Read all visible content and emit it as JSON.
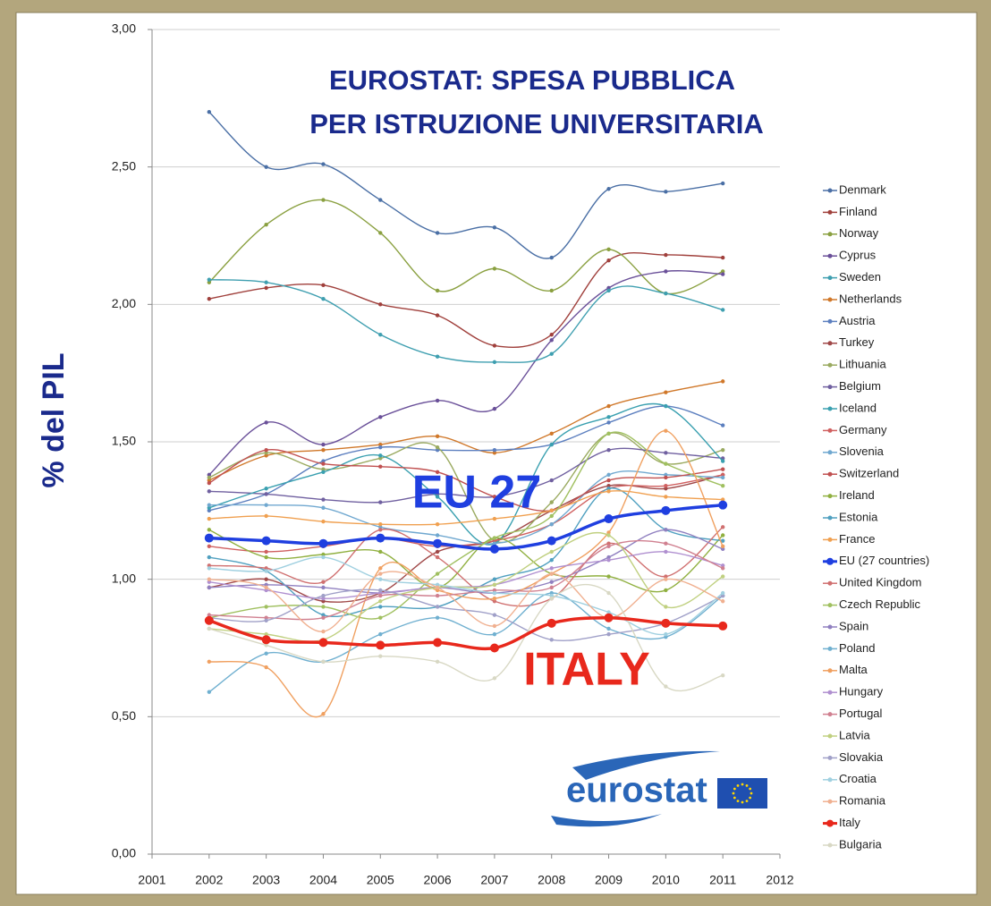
{
  "chart_data": {
    "type": "line",
    "title": [
      "EUROSTAT: SPESA PUBBLICA",
      "PER ISTRUZIONE UNIVERSITARIA"
    ],
    "y_label": "% del PIL",
    "annotations": [
      "EU 27",
      "ITALY"
    ],
    "logo_text": "eurostat",
    "x": [
      2002,
      2003,
      2004,
      2005,
      2006,
      2007,
      2008,
      2009,
      2010,
      2011
    ],
    "xlim": [
      2001,
      2012
    ],
    "xticks": [
      2001,
      2002,
      2003,
      2004,
      2005,
      2006,
      2007,
      2008,
      2009,
      2010,
      2011,
      2012
    ],
    "ylim": [
      0,
      3
    ],
    "yticks": [
      {
        "value": 0,
        "label": "0,00"
      },
      {
        "value": 0.5,
        "label": "0,50"
      },
      {
        "value": 1,
        "label": "1,00"
      },
      {
        "value": 1.5,
        "label": "1,50"
      },
      {
        "value": 2,
        "label": "2,00"
      },
      {
        "value": 2.5,
        "label": "2,50"
      },
      {
        "value": 3,
        "label": "3,00"
      }
    ],
    "grid": true,
    "legend": "right",
    "series": [
      {
        "name": "Denmark",
        "color": "#4a6fa5",
        "values": [
          2.7,
          2.5,
          2.51,
          2.38,
          2.26,
          2.28,
          2.17,
          2.42,
          2.41,
          2.44
        ]
      },
      {
        "name": "Finland",
        "color": "#a0403c",
        "values": [
          2.02,
          2.06,
          2.07,
          2.0,
          1.96,
          1.85,
          1.89,
          2.16,
          2.18,
          2.17
        ]
      },
      {
        "name": "Norway",
        "color": "#8aa040",
        "values": [
          2.08,
          2.29,
          2.38,
          2.26,
          2.05,
          2.13,
          2.05,
          2.2,
          2.04,
          2.12
        ]
      },
      {
        "name": "Cyprus",
        "color": "#6a5099",
        "values": [
          1.38,
          1.57,
          1.49,
          1.59,
          1.65,
          1.62,
          1.87,
          2.06,
          2.12,
          2.11
        ]
      },
      {
        "name": "Sweden",
        "color": "#3f9fb0",
        "values": [
          2.09,
          2.08,
          2.02,
          1.89,
          1.81,
          1.79,
          1.82,
          2.05,
          2.04,
          1.98
        ]
      },
      {
        "name": "Netherlands",
        "color": "#d0782a",
        "values": [
          1.36,
          1.45,
          1.47,
          1.49,
          1.52,
          1.46,
          1.53,
          1.63,
          1.68,
          1.72
        ]
      },
      {
        "name": "Austria",
        "color": "#5c7fbf",
        "values": [
          1.25,
          1.31,
          1.43,
          1.48,
          1.47,
          1.47,
          1.49,
          1.57,
          1.63,
          1.56
        ]
      },
      {
        "name": "Turkey",
        "color": "#a04848",
        "values": [
          0.97,
          1.0,
          0.92,
          0.95,
          1.1,
          1.14,
          1.25,
          1.34,
          1.33,
          1.38
        ]
      },
      {
        "name": "Lithuania",
        "color": "#9aaa60",
        "values": [
          1.37,
          1.46,
          1.4,
          1.44,
          1.48,
          1.14,
          1.28,
          1.53,
          1.42,
          1.47
        ]
      },
      {
        "name": "Belgium",
        "color": "#7060a0",
        "values": [
          1.32,
          1.31,
          1.29,
          1.28,
          1.31,
          1.3,
          1.36,
          1.47,
          1.46,
          1.44
        ]
      },
      {
        "name": "Iceland",
        "color": "#3aa0b0",
        "values": [
          1.26,
          1.33,
          1.39,
          1.45,
          1.3,
          1.13,
          1.49,
          1.59,
          1.63,
          1.43
        ]
      },
      {
        "name": "Germany",
        "color": "#d06060",
        "values": [
          1.12,
          1.1,
          1.12,
          1.15,
          1.12,
          1.14,
          1.2,
          1.33,
          1.34,
          1.38
        ]
      },
      {
        "name": "Slovenia",
        "color": "#70a8d0",
        "values": [
          1.27,
          1.27,
          1.26,
          1.19,
          1.16,
          1.13,
          1.2,
          1.38,
          1.38,
          1.37
        ]
      },
      {
        "name": "Switzerland",
        "color": "#c05050",
        "values": [
          1.35,
          1.47,
          1.42,
          1.41,
          1.39,
          1.3,
          1.25,
          1.36,
          1.37,
          1.4
        ]
      },
      {
        "name": "Ireland",
        "color": "#90b040",
        "values": [
          1.18,
          1.08,
          1.09,
          1.1,
          0.97,
          1.15,
          1.02,
          1.01,
          0.96,
          1.16
        ]
      },
      {
        "name": "Estonia",
        "color": "#50a0c0",
        "values": [
          1.08,
          1.03,
          0.87,
          0.9,
          0.9,
          1.0,
          1.07,
          1.33,
          1.18,
          1.14
        ]
      },
      {
        "name": "France",
        "color": "#f0a050",
        "values": [
          1.22,
          1.23,
          1.21,
          1.2,
          1.2,
          1.22,
          1.25,
          1.32,
          1.3,
          1.29
        ]
      },
      {
        "name": "EU (27 countries)",
        "color": "#1f3fe0",
        "values": [
          1.15,
          1.14,
          1.13,
          1.15,
          1.13,
          1.11,
          1.14,
          1.22,
          1.25,
          1.27
        ]
      },
      {
        "name": "United Kingdom",
        "color": "#d07070",
        "values": [
          1.05,
          1.04,
          0.99,
          1.18,
          1.08,
          0.92,
          0.93,
          1.13,
          1.01,
          1.19
        ]
      },
      {
        "name": "Czech Republic",
        "color": "#a0c060",
        "values": [
          0.86,
          0.9,
          0.9,
          0.86,
          1.02,
          1.15,
          1.23,
          1.53,
          1.42,
          1.34
        ]
      },
      {
        "name": "Spain",
        "color": "#9080c0",
        "values": [
          0.97,
          0.98,
          0.97,
          0.95,
          0.97,
          0.95,
          0.99,
          1.08,
          1.18,
          1.11
        ]
      },
      {
        "name": "Poland",
        "color": "#70b0d0",
        "values": [
          0.59,
          0.73,
          0.7,
          0.8,
          0.86,
          0.8,
          0.95,
          0.82,
          0.79,
          0.94
        ]
      },
      {
        "name": "Malta",
        "color": "#f0a060",
        "values": [
          0.7,
          0.68,
          0.51,
          1.04,
          0.96,
          0.93,
          1.02,
          1.17,
          1.54,
          1.12
        ]
      },
      {
        "name": "Hungary",
        "color": "#b090d0",
        "values": [
          0.99,
          0.96,
          0.93,
          0.95,
          0.97,
          0.98,
          1.04,
          1.07,
          1.1,
          1.05
        ]
      },
      {
        "name": "Portugal",
        "color": "#d08090",
        "values": [
          0.87,
          0.86,
          0.86,
          0.94,
          0.94,
          0.96,
          0.97,
          1.12,
          1.13,
          1.04
        ]
      },
      {
        "name": "Latvia",
        "color": "#c0d080",
        "values": [
          0.82,
          0.8,
          0.78,
          0.92,
          0.97,
          0.98,
          1.1,
          1.16,
          0.9,
          1.01
        ]
      },
      {
        "name": "Slovakia",
        "color": "#a0a0c8",
        "values": [
          0.86,
          0.85,
          0.94,
          0.96,
          0.9,
          0.87,
          0.78,
          0.8,
          0.84,
          0.94
        ]
      },
      {
        "name": "Croatia",
        "color": "#a0d0e0",
        "values": [
          1.04,
          1.03,
          1.08,
          1.0,
          0.98,
          0.95,
          0.94,
          0.88,
          0.8,
          0.95
        ]
      },
      {
        "name": "Romania",
        "color": "#f0b090",
        "values": [
          1.0,
          0.97,
          0.81,
          1.02,
          0.97,
          0.83,
          1.02,
          0.86,
          1.0,
          0.92
        ]
      },
      {
        "name": "Italy",
        "color": "#e8281c",
        "values": [
          0.85,
          0.78,
          0.77,
          0.76,
          0.77,
          0.75,
          0.84,
          0.86,
          0.84,
          0.83
        ]
      },
      {
        "name": "Bulgaria",
        "color": "#d8d8c4",
        "values": [
          0.82,
          0.76,
          0.7,
          0.72,
          0.7,
          0.64,
          0.93,
          0.95,
          0.61,
          0.65
        ]
      }
    ]
  }
}
